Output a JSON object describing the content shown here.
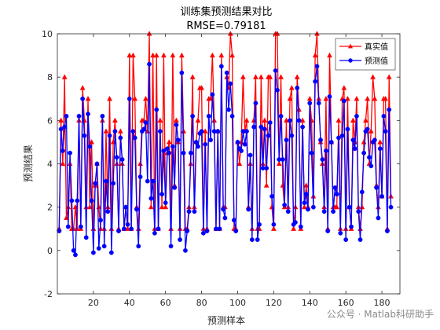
{
  "chart_data": {
    "type": "line",
    "title": "训练集预测结果对比",
    "subtitle": "RMSE=0.79181",
    "xlabel": "预测样本",
    "ylabel": "预测结果",
    "xlim": [
      0,
      190
    ],
    "ylim": [
      -2,
      10
    ],
    "xticks": [
      20,
      40,
      60,
      80,
      100,
      120,
      140,
      160,
      180
    ],
    "yticks": [
      -2,
      0,
      2,
      4,
      6,
      8,
      10
    ],
    "grid": false,
    "legend_position": "top-right",
    "series": [
      {
        "name": "真实值",
        "color": "#ff0000",
        "marker": "triangle",
        "values": [
          1,
          6,
          4,
          8,
          1.5,
          2,
          4,
          1,
          1,
          2,
          1,
          6,
          1,
          7.5,
          6,
          2,
          7,
          2,
          5,
          1,
          3,
          4,
          2,
          1,
          6,
          1,
          5.5,
          2,
          7,
          1,
          5,
          6,
          4,
          1,
          5.5,
          4,
          1,
          2,
          1,
          9,
          1,
          9,
          7,
          2,
          1,
          4,
          6,
          6,
          7,
          5.5,
          10,
          2,
          9,
          1,
          9,
          1,
          6,
          2,
          9,
          2,
          4.5,
          5,
          1,
          9,
          3,
          6,
          5,
          1,
          9,
          5.5,
          1,
          1,
          2,
          4,
          8,
          2,
          5,
          6,
          7.5,
          7.5,
          1,
          5.5,
          1,
          7,
          7,
          9,
          6,
          1,
          5.5,
          1,
          9,
          2,
          2,
          8,
          7.5,
          10,
          9,
          1,
          1,
          5,
          4,
          5,
          8,
          5.5,
          6,
          2,
          4,
          1,
          6,
          8,
          1,
          1,
          8,
          4,
          6,
          3,
          8,
          8,
          2,
          1,
          10,
          10,
          4,
          8,
          3,
          2,
          6,
          2,
          7,
          7.5,
          1,
          2,
          8,
          6.5,
          1,
          6,
          2,
          3,
          2,
          7,
          6,
          2.5,
          9,
          10,
          7,
          5,
          4,
          2,
          7,
          1,
          9,
          5,
          2,
          2,
          2,
          6,
          1,
          7,
          7.5,
          1,
          7,
          2,
          1,
          6,
          5,
          7,
          2,
          1,
          2,
          5,
          6,
          7,
          4,
          5.5,
          8,
          7,
          3,
          2,
          5,
          2.5,
          7,
          7,
          1,
          8,
          2.5
        ]
      },
      {
        "name": "预测值",
        "color": "#0000ff",
        "marker": "circle",
        "values": [
          0.9,
          5.6,
          4.6,
          5.7,
          6.2,
          1.1,
          4.5,
          2.3,
          0,
          -0.2,
          2.3,
          6.2,
          1.1,
          7,
          5.3,
          0.6,
          6.3,
          4.8,
          2.3,
          -0.1,
          3.1,
          4,
          0.1,
          1.4,
          6.2,
          0.2,
          3.2,
          1.8,
          5.3,
          -0.1,
          3.1,
          5.5,
          4.3,
          0.9,
          5.2,
          4.2,
          1,
          2,
          1.2,
          7,
          1,
          5.5,
          5.2,
          1.9,
          0.2,
          3.4,
          5.5,
          5.6,
          5.9,
          3.2,
          8.6,
          2.4,
          3.2,
          0.8,
          6.5,
          1,
          5.5,
          2.6,
          4.6,
          2.2,
          4.7,
          4.5,
          0.2,
          4.8,
          2.9,
          5.8,
          5.1,
          0.5,
          8.2,
          4.5,
          0,
          0.9,
          1.8,
          4.5,
          6.2,
          1.8,
          5,
          4.8,
          5.4,
          5.5,
          0.8,
          4.9,
          0.9,
          6.2,
          5.1,
          7.2,
          5.5,
          1,
          5.5,
          1,
          8.5,
          1.9,
          1.5,
          8.2,
          6.5,
          7.7,
          6.2,
          1.4,
          0.9,
          5,
          4.7,
          4.6,
          5.5,
          4.9,
          5.5,
          1.9,
          4.4,
          0.5,
          5.7,
          6.8,
          0.5,
          1.2,
          5.7,
          3.8,
          5.6,
          3.8,
          5.3,
          5.9,
          2.5,
          1.2,
          8.3,
          7.4,
          4.2,
          6.2,
          4.2,
          2.1,
          5.1,
          1.8,
          6,
          5.3,
          1.2,
          1.3,
          7.5,
          6,
          1.1,
          5.7,
          2.2,
          2.6,
          1.9,
          6.8,
          4.5,
          2,
          7.8,
          8.5,
          6.8,
          5.1,
          4.2,
          1.8,
          4.6,
          0.9,
          7.1,
          5,
          1.8,
          2.9,
          2.6,
          5.2,
          0.8,
          5.3,
          6.9,
          0.5,
          5.6,
          2,
          1.1,
          5.1,
          4.7,
          6.2,
          1.8,
          0.5,
          2.7,
          4.5,
          5.5,
          5.6,
          4.3,
          3.9,
          5,
          5.1,
          2.9,
          1.5,
          4.7,
          2.5,
          6.2,
          5.5,
          0.9,
          6.5,
          2
        ]
      }
    ]
  },
  "watermark": "公众号 · Matlab科研助手"
}
